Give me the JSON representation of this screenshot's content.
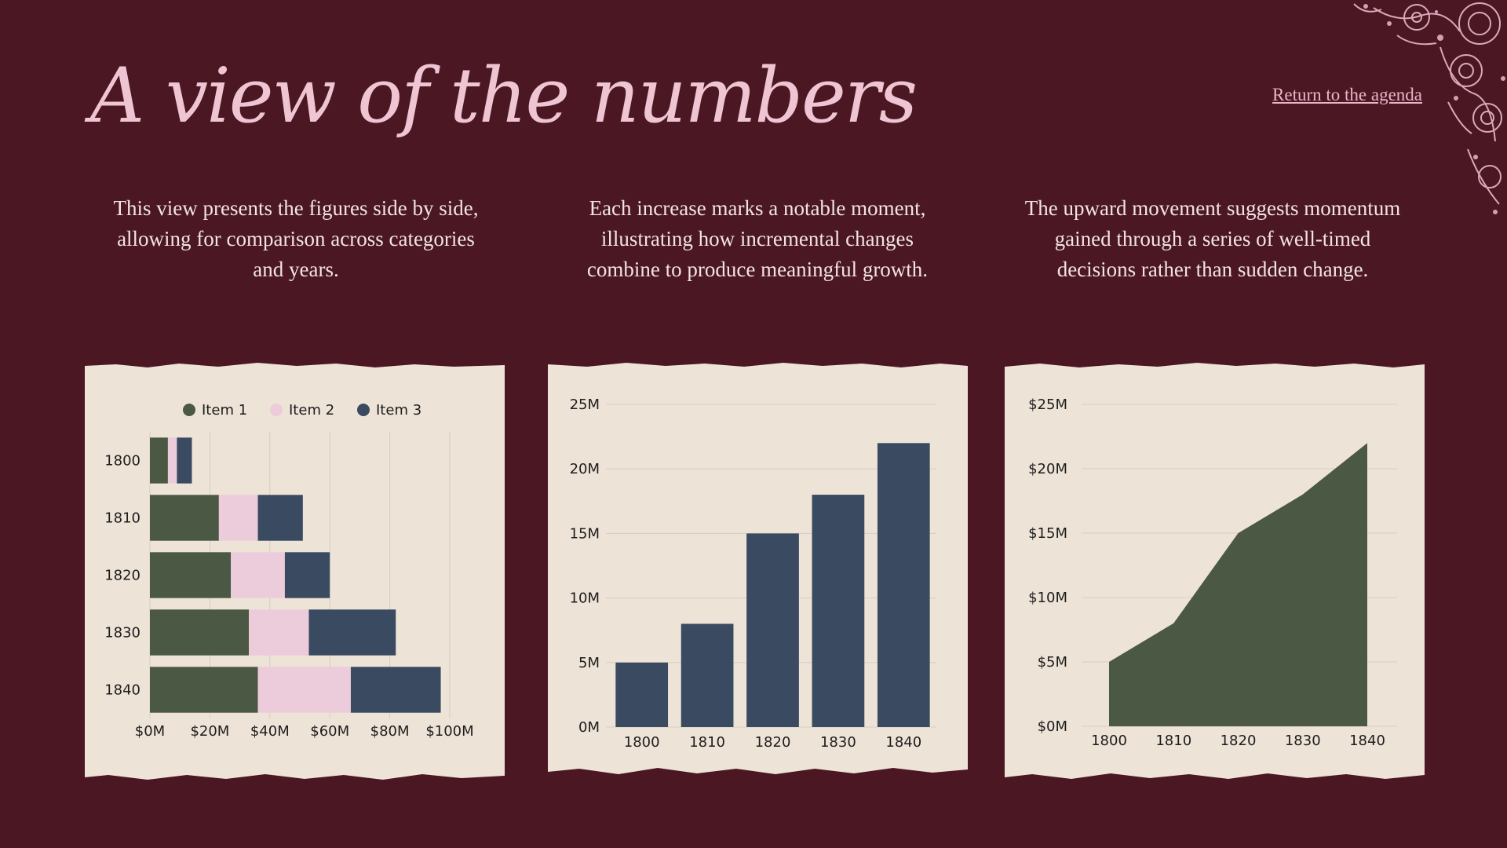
{
  "title": "A view of the numbers",
  "agenda_link": "Return to the agenda",
  "descriptions": [
    "This view presents the figures side by side, allowing for comparison across categories and years.",
    "Each increase marks a notable moment, illustrating how incremental changes combine to produce meaningful growth.",
    "The upward movement suggests momentum gained through a series of well-timed decisions rather than sudden change."
  ],
  "colors": {
    "background": "#4a1722",
    "title": "#efc4d3",
    "paper": "#eee3d7",
    "green": "#4b5843",
    "pink": "#ecccdb",
    "navy": "#3a4a61",
    "grid": "#d6ccc1"
  },
  "chart_data": [
    {
      "type": "bar",
      "orientation": "horizontal",
      "stacked": true,
      "categories": [
        "1800",
        "1810",
        "1820",
        "1830",
        "1840"
      ],
      "series": [
        {
          "name": "Item 1",
          "color": "#4b5843",
          "values": [
            6,
            23,
            27,
            33,
            36
          ]
        },
        {
          "name": "Item 2",
          "color": "#ecccdb",
          "values": [
            3,
            13,
            18,
            20,
            31
          ]
        },
        {
          "name": "Item 3",
          "color": "#3a4a61",
          "values": [
            5,
            15,
            15,
            29,
            30
          ]
        }
      ],
      "xlim": [
        0,
        100
      ],
      "xticks": [
        "$0M",
        "$20M",
        "$40M",
        "$60M",
        "$80M",
        "$100M"
      ],
      "legend_position": "top",
      "grid": true
    },
    {
      "type": "bar",
      "orientation": "vertical",
      "categories": [
        "1800",
        "1810",
        "1820",
        "1830",
        "1840"
      ],
      "values": [
        5,
        8,
        15,
        18,
        22
      ],
      "color": "#3a4a61",
      "ylim": [
        0,
        25
      ],
      "yticks": [
        "0M",
        "5M",
        "10M",
        "15M",
        "20M",
        "25M"
      ],
      "grid": true
    },
    {
      "type": "area",
      "x": [
        "1800",
        "1810",
        "1820",
        "1830",
        "1840"
      ],
      "values": [
        5,
        8,
        15,
        18,
        22
      ],
      "color": "#4b5843",
      "ylim": [
        0,
        25
      ],
      "yticks": [
        "$0M",
        "$5M",
        "$10M",
        "$15M",
        "$20M",
        "$25M"
      ],
      "grid": true
    }
  ]
}
